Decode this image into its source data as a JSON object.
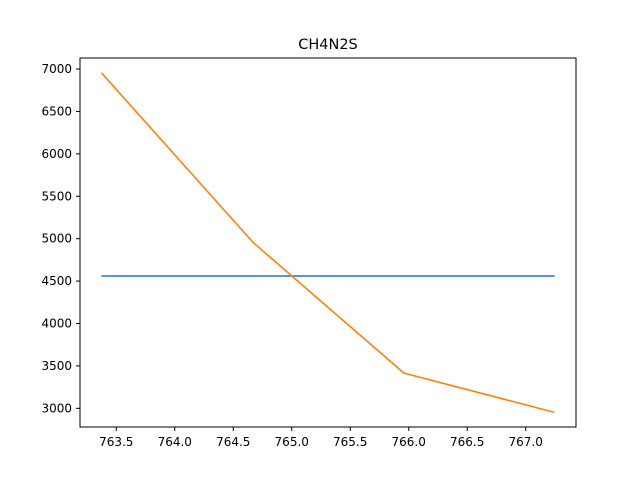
{
  "chart_data": {
    "type": "line",
    "title": "CH4N2S",
    "xlabel": "",
    "ylabel": "",
    "xlim": [
      763.19,
      767.43
    ],
    "ylim": [
      2780,
      7130
    ],
    "grid": false,
    "x_ticks": [
      763.5,
      764.0,
      764.5,
      765.0,
      765.5,
      766.0,
      766.5,
      767.0
    ],
    "x_tick_labels": [
      "763.5",
      "764.0",
      "764.5",
      "765.0",
      "765.5",
      "766.0",
      "766.5",
      "767.0"
    ],
    "y_ticks": [
      3000,
      3500,
      4000,
      4500,
      5000,
      5500,
      6000,
      6500,
      7000
    ],
    "y_tick_labels": [
      "3000",
      "3500",
      "4000",
      "4500",
      "5000",
      "5500",
      "6000",
      "6500",
      "7000"
    ],
    "series": [
      {
        "color": "#1f77b4",
        "x": [
          763.38,
          767.24
        ],
        "y": [
          4560,
          4560
        ]
      },
      {
        "color": "#ff7f0e",
        "x": [
          763.38,
          764.67,
          765.96,
          767.24
        ],
        "y": [
          6945,
          4955,
          3415,
          2955
        ]
      }
    ]
  }
}
